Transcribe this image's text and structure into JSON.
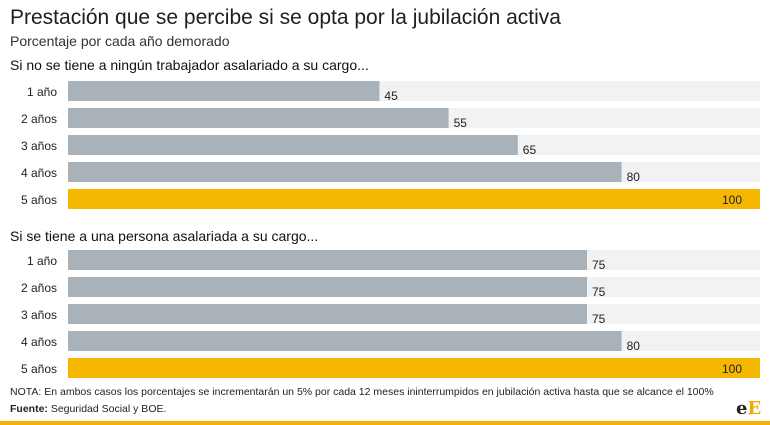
{
  "header": {
    "title": "Prestación que se percibe si se opta por la jubilación activa",
    "subtitle": "Porcentaje por cada año demorado"
  },
  "colors": {
    "bar_gray": "#a9b2b9",
    "bar_highlight": "#f6b700",
    "bar_track": "#f1f2f3"
  },
  "chart_data": [
    {
      "type": "bar",
      "orientation": "horizontal",
      "title": "Si no se tiene a ningún trabajador asalariado a su cargo...",
      "categories": [
        "1 año",
        "2 años",
        "3 años",
        "4 años",
        "5 años"
      ],
      "values": [
        45,
        55,
        65,
        80,
        100
      ],
      "xlim": [
        0,
        100
      ],
      "highlight_index": 4
    },
    {
      "type": "bar",
      "orientation": "horizontal",
      "title": "Si se tiene a una persona asalariada a su cargo...",
      "categories": [
        "1 año",
        "2 años",
        "3 años",
        "4 años",
        "5 años"
      ],
      "values": [
        75,
        75,
        75,
        80,
        100
      ],
      "xlim": [
        0,
        100
      ],
      "highlight_index": 4
    }
  ],
  "footer": {
    "note": "NOTA: En ambos casos los porcentajes se incrementarán un 5% por cada 12 meses ininterrumpidos en jubilación activa hasta que se alcance el 100%",
    "source_label": "Fuente:",
    "source_text": " Seguridad Social y BOE.",
    "logo_small": "e",
    "logo_big": "E"
  }
}
